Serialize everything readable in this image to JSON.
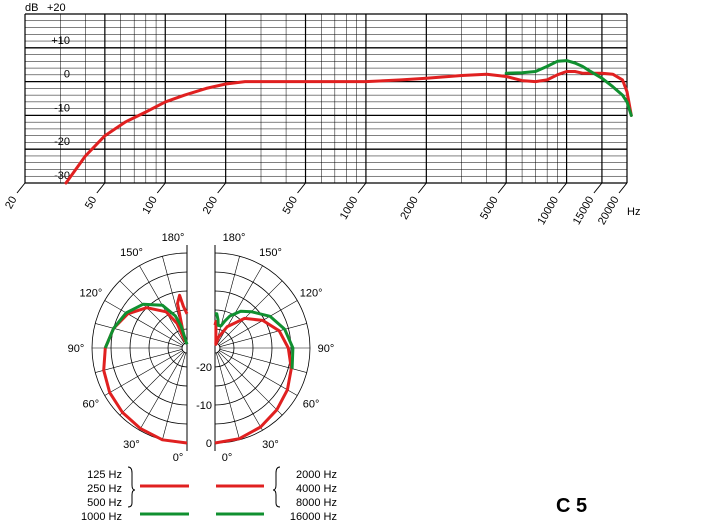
{
  "chart_data": [
    {
      "type": "line",
      "x_unit": "Hz",
      "y_unit": "dB",
      "y_top_label": "+20",
      "y_ticks": [
        "+10",
        "0",
        "-10",
        "-20",
        "-30"
      ],
      "x_ticks": [
        "20",
        "50",
        "100",
        "200",
        "500",
        "1000",
        "2000",
        "5000",
        "10000",
        "15000",
        "20000"
      ],
      "ylim": [
        -30,
        20
      ],
      "xlim": [
        20,
        20000
      ],
      "x_scale": "log",
      "grid": true,
      "series": [
        {
          "color": "#e02020",
          "points": [
            [
              32,
              -30
            ],
            [
              40,
              -22
            ],
            [
              50,
              -16
            ],
            [
              63,
              -12
            ],
            [
              80,
              -9
            ],
            [
              100,
              -6
            ],
            [
              125,
              -4
            ],
            [
              160,
              -2
            ],
            [
              200,
              -0.7
            ],
            [
              250,
              0
            ],
            [
              300,
              0
            ],
            [
              500,
              0
            ],
            [
              1000,
              0
            ],
            [
              1500,
              0.5
            ],
            [
              2000,
              1
            ],
            [
              3000,
              1.8
            ],
            [
              4000,
              2.2
            ],
            [
              5000,
              1.5
            ],
            [
              6000,
              0.3
            ],
            [
              7000,
              0
            ],
            [
              8000,
              0.5
            ],
            [
              9000,
              2
            ],
            [
              10000,
              3
            ],
            [
              11000,
              3
            ],
            [
              12000,
              2.5
            ],
            [
              15000,
              2.5
            ],
            [
              17000,
              2.2
            ],
            [
              19000,
              0.5
            ],
            [
              20000,
              -3
            ],
            [
              21000,
              -10
            ]
          ]
        },
        {
          "color": "#109030",
          "points": [
            [
              5000,
              2.5
            ],
            [
              6000,
              2.6
            ],
            [
              7000,
              3
            ],
            [
              8000,
              4.5
            ],
            [
              9000,
              6
            ],
            [
              10000,
              6.2
            ],
            [
              11000,
              5.5
            ],
            [
              12000,
              4.5
            ],
            [
              13000,
              3.2
            ],
            [
              15000,
              1
            ],
            [
              17000,
              -1.5
            ],
            [
              19000,
              -4
            ],
            [
              20000,
              -6
            ],
            [
              21000,
              -10
            ]
          ]
        }
      ]
    },
    {
      "type": "polar",
      "angle_labels": [
        "0°",
        "30°",
        "60°",
        "90°",
        "120°",
        "150°",
        "180°"
      ],
      "db_labels": [
        "0",
        "-10",
        "-20"
      ],
      "left_legend": [
        "125 Hz",
        "250 Hz",
        "500 Hz",
        "1000 Hz"
      ],
      "right_legend": [
        "2000 Hz",
        "4000 Hz",
        "8000 Hz",
        "16000 Hz"
      ],
      "series_left": [
        {
          "color": "#e02020",
          "points": [
            [
              0,
              0
            ],
            [
              15,
              0
            ],
            [
              30,
              -0.5
            ],
            [
              45,
              -1
            ],
            [
              60,
              -1.5
            ],
            [
              75,
              -2.3
            ],
            [
              90,
              -3.5
            ],
            [
              105,
              -5
            ],
            [
              120,
              -7
            ],
            [
              135,
              -10
            ],
            [
              150,
              -14
            ],
            [
              158,
              -18
            ],
            [
              163,
              -23
            ],
            [
              168,
              -13
            ],
            [
              172,
              -11
            ],
            [
              175,
              -14
            ],
            [
              180,
              -16
            ]
          ]
        },
        {
          "color": "#109030",
          "points": [
            [
              90,
              -3.5
            ],
            [
              105,
              -5
            ],
            [
              120,
              -6.5
            ],
            [
              135,
              -8.7
            ],
            [
              150,
              -12
            ],
            [
              160,
              -16
            ],
            [
              165,
              -19
            ],
            [
              170,
              -23
            ],
            [
              180,
              -24
            ]
          ]
        }
      ],
      "series_right": [
        {
          "color": "#e02020",
          "points": [
            [
              0,
              0
            ],
            [
              15,
              -0.3
            ],
            [
              30,
              -1
            ],
            [
              45,
              -2
            ],
            [
              60,
              -3
            ],
            [
              75,
              -4.2
            ],
            [
              90,
              -5.7
            ],
            [
              105,
              -7.5
            ],
            [
              120,
              -10.5
            ],
            [
              135,
              -14
            ],
            [
              150,
              -18.5
            ],
            [
              162,
              -22
            ],
            [
              168,
              -24
            ],
            [
              173,
              -23
            ],
            [
              178,
              -18
            ],
            [
              180,
              -19
            ]
          ]
        },
        {
          "color": "#109030",
          "points": [
            [
              75,
              -4
            ],
            [
              90,
              -4.5
            ],
            [
              105,
              -6
            ],
            [
              120,
              -8.3
            ],
            [
              135,
              -11.5
            ],
            [
              145,
              -13.2
            ],
            [
              155,
              -15.7
            ],
            [
              160,
              -17.5
            ],
            [
              165,
              -19
            ],
            [
              170,
              -19
            ],
            [
              172,
              -19
            ],
            [
              174,
              -17.5
            ],
            [
              177,
              -16
            ],
            [
              180,
              -16
            ]
          ]
        }
      ]
    }
  ],
  "model_label": "C 5"
}
